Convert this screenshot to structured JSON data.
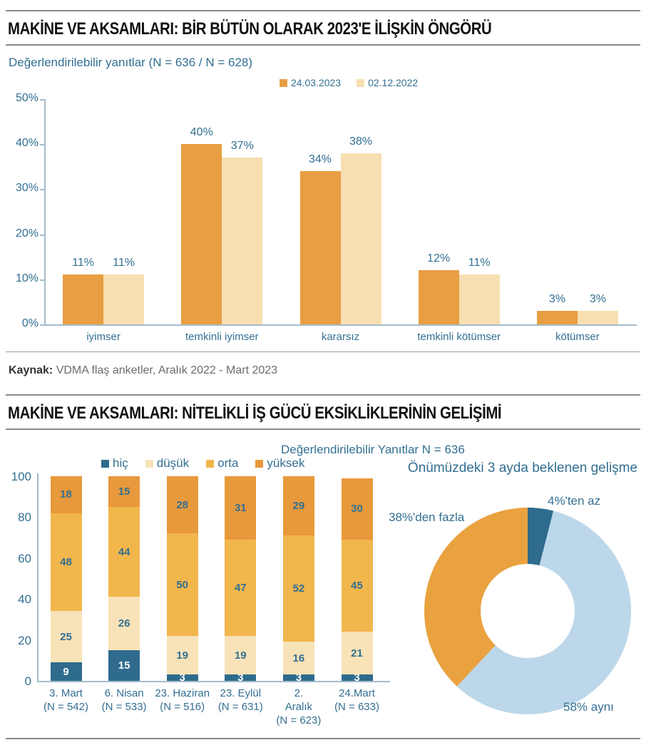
{
  "section1": {
    "title": "MAKİNE VE AKSAMLARI: BİR BÜTÜN OLARAK 2023'E İLİŞKİN ÖNGÖRÜ",
    "subtitle": "Değerlendirilebilir yanıtlar (N = 636 / N = 628)",
    "source_label": "Kaynak:",
    "source_text": " VDMA flaş anketler, Aralık 2022 - Mart 2023"
  },
  "section2": {
    "title": "MAKİNE VE AKSAMLARI: NİTELİKLİ İŞ GÜCÜ EKSİKLİKLERİNİN GELİŞİMİ",
    "subtitle": "Değerlendirilebilir Yanıtlar N = 636"
  },
  "colors": {
    "text_blue": "#336f92",
    "axis": "#a3bccb",
    "series_2023": "#E89E42",
    "series_2022": "#F7DFB2",
    "hic": "#2E6B8C",
    "dusuk": "#F8E2B8",
    "orta": "#F1B64C",
    "yuksek": "#E8993B",
    "donut_blue": "#BCD7E9",
    "donut_orange": "#E9A23F",
    "donut_teal": "#2E6B8C"
  },
  "chart_data": [
    {
      "type": "bar",
      "title": "MAKİNE VE AKSAMLARI: BİR BÜTÜN OLARAK 2023'E İLİŞKİN ÖNGÖRÜ",
      "subtitle": "Değerlendirilebilir yanıtlar (N = 636 / N = 628)",
      "categories": [
        "iyimser",
        "temkinli iyimser",
        "kararsız",
        "temkinli kötümser",
        "kötümser"
      ],
      "series": [
        {
          "name": "24.03.2023",
          "color": "#E89E42",
          "values": [
            11,
            40,
            34,
            12,
            3
          ]
        },
        {
          "name": "02.12.2022",
          "color": "#F7DFB2",
          "values": [
            11,
            37,
            38,
            11,
            3
          ]
        }
      ],
      "ylim": [
        0,
        50
      ],
      "yticks": [
        0,
        10,
        20,
        30,
        40,
        50
      ],
      "ytick_suffix": "%",
      "value_suffix": "%",
      "grid": false,
      "legend_position": "top"
    },
    {
      "type": "bar",
      "stacked": true,
      "title": "MAKİNE VE AKSAMLARI: NİTELİKLİ İŞ GÜCÜ EKSİKLİKLERİNİN GELİŞİMİ",
      "subtitle": "Değerlendirilebilir Yanıtlar N = 636",
      "categories": [
        "3. Mart\n(N = 542)",
        "6. Nisan\n(N = 533)",
        "23. Haziran\n(N = 516)",
        "23. Eylül\n(N = 631)",
        "2.\nAralık\n(N = 623)",
        "24.Mart\n(N = 633)"
      ],
      "series": [
        {
          "name": "hiç",
          "color": "#2E6B8C",
          "label_color": "#FFFFFF",
          "values": [
            9,
            15,
            3,
            3,
            3,
            3
          ]
        },
        {
          "name": "düşük",
          "color": "#F8E2B8",
          "label_color": "#336f92",
          "values": [
            25,
            26,
            19,
            19,
            16,
            21
          ]
        },
        {
          "name": "orta",
          "color": "#F1B64C",
          "label_color": "#336f92",
          "values": [
            48,
            44,
            50,
            47,
            52,
            45
          ]
        },
        {
          "name": "yüksek",
          "color": "#E8993B",
          "label_color": "#336f92",
          "values": [
            18,
            15,
            28,
            31,
            29,
            30
          ]
        }
      ],
      "ylim": [
        0,
        100
      ],
      "yticks": [
        0,
        20,
        40,
        60,
        80,
        100
      ],
      "grid": false,
      "legend_position": "top"
    },
    {
      "type": "pie",
      "donut": true,
      "title": "Önümüzdeki 3 ayda beklenen gelişme",
      "slices": [
        {
          "label": "4%'ten az",
          "value": 4,
          "color": "#2E6B8C"
        },
        {
          "label": "58% aynı",
          "value": 58,
          "color": "#BCD7E9"
        },
        {
          "label": "38%'den fazla",
          "value": 38,
          "color": "#E9A23F"
        }
      ]
    }
  ]
}
